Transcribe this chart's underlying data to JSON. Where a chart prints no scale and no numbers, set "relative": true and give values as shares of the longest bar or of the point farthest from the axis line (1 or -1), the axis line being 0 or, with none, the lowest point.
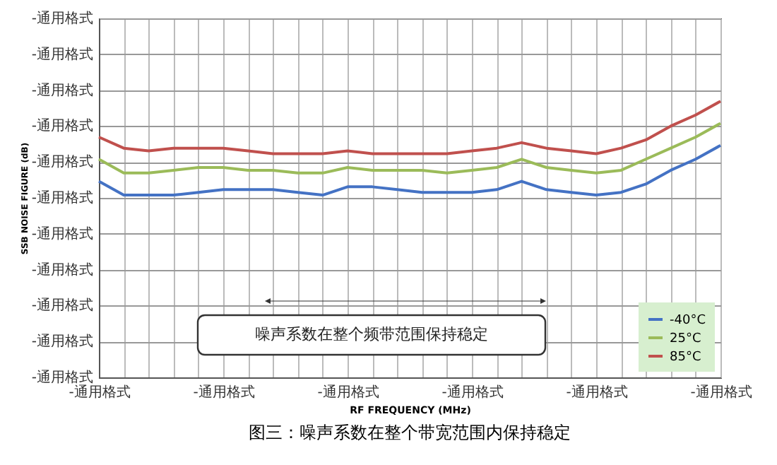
{
  "chart_data": {
    "type": "line",
    "title": "图三：噪声系数在整个带宽范围内保持稳定",
    "xlabel": "RF FREQUENCY (MHz)",
    "ylabel": "SSB NOISE FIGURE (dB)",
    "relative": true,
    "categories": [
      "-通用格式",
      null,
      null,
      null,
      null,
      "-通用格式",
      null,
      null,
      null,
      null,
      "-通用格式",
      null,
      null,
      null,
      null,
      "-通用格式",
      null,
      null,
      null,
      null,
      "-通用格式",
      null,
      null,
      null,
      null,
      "-通用格式"
    ],
    "series": [
      {
        "name": "-40°C",
        "color": "#4472c4",
        "values": [
          0.71,
          0.66,
          0.66,
          0.66,
          0.67,
          0.68,
          0.68,
          0.68,
          0.67,
          0.66,
          0.69,
          0.69,
          0.68,
          0.67,
          0.67,
          0.67,
          0.68,
          0.71,
          0.68,
          0.67,
          0.66,
          0.67,
          0.7,
          0.75,
          0.79,
          0.84
        ]
      },
      {
        "name": "25°C",
        "color": "#9bbb59",
        "values": [
          0.79,
          0.74,
          0.74,
          0.75,
          0.76,
          0.76,
          0.75,
          0.75,
          0.74,
          0.74,
          0.76,
          0.75,
          0.75,
          0.75,
          0.74,
          0.75,
          0.76,
          0.79,
          0.76,
          0.75,
          0.74,
          0.75,
          0.79,
          0.83,
          0.87,
          0.92
        ]
      },
      {
        "name": "85°C",
        "color": "#c0504d",
        "values": [
          0.87,
          0.83,
          0.82,
          0.83,
          0.83,
          0.83,
          0.82,
          0.81,
          0.81,
          0.81,
          0.82,
          0.81,
          0.81,
          0.81,
          0.81,
          0.82,
          0.83,
          0.85,
          0.83,
          0.82,
          0.81,
          0.83,
          0.86,
          0.91,
          0.95,
          1.0
        ]
      }
    ],
    "annotations": [
      "噪声系数在整个频带范围保持稳定",
      "-通用格式",
      "-通用格式",
      "-通用格式",
      "-通用格式",
      "-通用格式",
      "-通用格式",
      "-通用格式",
      "-通用格式",
      "-通用格式",
      "-通用格式",
      "-通用格式"
    ],
    "grid": true,
    "legend": "bottom right",
    "marker": "none",
    "line_style": "solid"
  }
}
